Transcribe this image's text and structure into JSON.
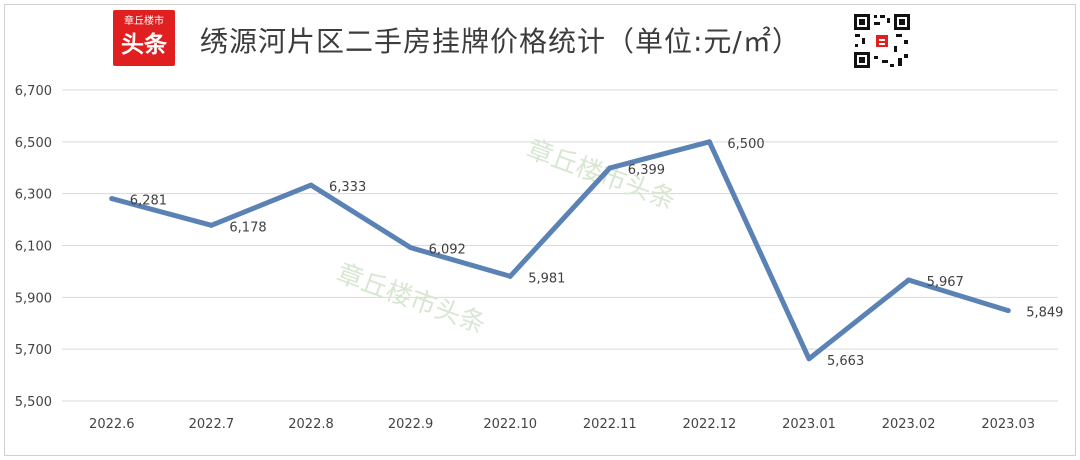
{
  "logo": {
    "line1": "章丘楼市",
    "line2": "头条"
  },
  "qr": {
    "icon": "qr-code-icon",
    "center_icon": "brand-logo-icon"
  },
  "colors": {
    "line": "#5b82b5",
    "grid": "#d9d9d9",
    "watermark": "#d7e7d2",
    "logo": "#e02020"
  },
  "watermark": {
    "text": "章丘楼市头条"
  },
  "chart_data": {
    "type": "line",
    "title": "绣源河片区二手房挂牌价格统计（单位:元/㎡）",
    "xlabel": "",
    "ylabel": "",
    "categories": [
      "2022.6",
      "2022.7",
      "2022.8",
      "2022.9",
      "2022.10",
      "2022.11",
      "2022.12",
      "2023.01",
      "2023.02",
      "2023.03"
    ],
    "values": [
      6281,
      6178,
      6333,
      6092,
      5981,
      6399,
      6500,
      5663,
      5967,
      5849
    ],
    "data_labels": [
      "6,281",
      "6,178",
      "6,333",
      "6,092",
      "5,981",
      "6,399",
      "6,500",
      "5,663",
      "5,967",
      "5,849"
    ],
    "ylim": [
      5500,
      6700
    ],
    "yticks": [
      5500,
      5700,
      5900,
      6100,
      6300,
      6500,
      6700
    ],
    "ytick_labels": [
      "5,500",
      "5,700",
      "5,900",
      "6,100",
      "6,300",
      "6,500",
      "6,700"
    ],
    "grid": true,
    "legend": "none"
  }
}
